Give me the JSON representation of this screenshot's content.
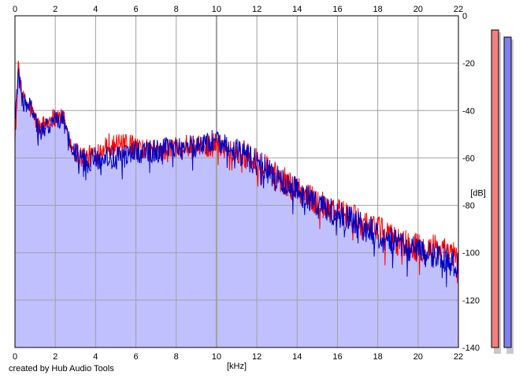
{
  "footer": {
    "credit": "created by Hub Audio Tools"
  },
  "chart_data": {
    "type": "area",
    "xlabel": "[kHz]",
    "ylabel": "[dB]",
    "xlim": [
      0,
      22
    ],
    "ylim": [
      -140,
      0
    ],
    "x_ticks": [
      0,
      2,
      4,
      6,
      8,
      10,
      12,
      14,
      16,
      18,
      20,
      22
    ],
    "y_ticks": [
      0,
      -20,
      -40,
      -60,
      -80,
      -100,
      -120,
      -140
    ],
    "grid": true,
    "colors": {
      "fill": "#c0c0ff",
      "grid": "#a0a0a0",
      "left": "#ff0000",
      "right": "#0000c0"
    },
    "series": [
      {
        "channel": "left",
        "x": [
          0.05,
          0.15,
          0.4,
          0.8,
          1.2,
          1.6,
          2.0,
          2.4,
          2.8,
          3.2,
          3.6,
          4.0,
          4.6,
          5.2,
          5.8,
          6.4,
          7.0,
          7.6,
          8.2,
          8.8,
          9.4,
          10.0,
          10.6,
          11.2,
          11.8,
          12.4,
          13.0,
          13.6,
          14.2,
          14.8,
          15.4,
          16.0,
          16.6,
          17.2,
          17.8,
          18.4,
          19.0,
          19.6,
          20.2,
          20.8,
          21.4,
          22.0
        ],
        "values": [
          -45,
          -22,
          -35,
          -40,
          -47,
          -45,
          -42,
          -43,
          -55,
          -59,
          -60,
          -58,
          -54,
          -55,
          -55,
          -57,
          -57,
          -57,
          -54,
          -56,
          -55,
          -54,
          -56,
          -57,
          -61,
          -64,
          -68,
          -71,
          -74,
          -78,
          -80,
          -82,
          -85,
          -87,
          -89,
          -92,
          -95,
          -97,
          -98,
          -98,
          -100,
          -102
        ]
      },
      {
        "channel": "right",
        "x": [
          0.05,
          0.15,
          0.4,
          0.8,
          1.2,
          1.6,
          2.0,
          2.4,
          2.8,
          3.2,
          3.6,
          4.0,
          4.6,
          5.2,
          5.8,
          6.4,
          7.0,
          7.6,
          8.2,
          8.8,
          9.4,
          10.0,
          10.6,
          11.2,
          11.8,
          12.4,
          13.0,
          13.6,
          14.2,
          14.8,
          15.4,
          16.0,
          16.6,
          17.2,
          17.8,
          18.4,
          19.0,
          19.6,
          20.2,
          20.8,
          21.4,
          22.0
        ],
        "values": [
          -40,
          -24,
          -37,
          -38,
          -50,
          -47,
          -43,
          -44,
          -56,
          -60,
          -62,
          -60,
          -60,
          -60,
          -58,
          -57,
          -57,
          -56,
          -56,
          -55,
          -54,
          -52,
          -55,
          -57,
          -61,
          -64,
          -69,
          -72,
          -75,
          -78,
          -81,
          -84,
          -86,
          -89,
          -91,
          -94,
          -96,
          -98,
          -100,
          -101,
          -103,
          -105
        ]
      }
    ],
    "level_meters": [
      {
        "channel": "left",
        "value_db": -6
      },
      {
        "channel": "right",
        "value_db": -9
      }
    ]
  }
}
